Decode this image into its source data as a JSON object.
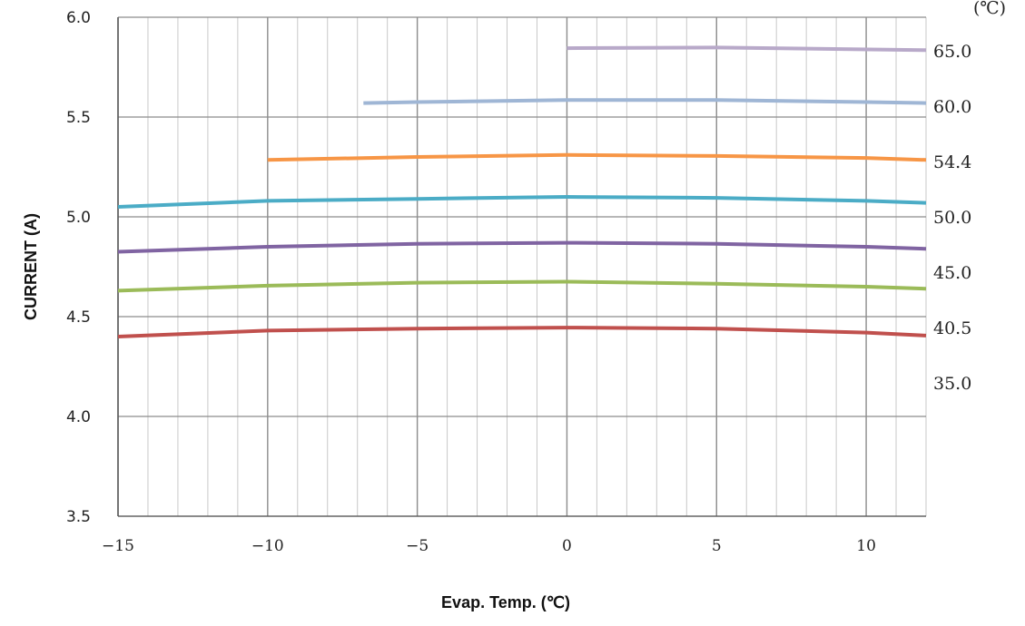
{
  "chart_data": {
    "type": "line",
    "xlabel": "Evap. Temp. (℃)",
    "ylabel": "CURRENT (A)",
    "xlim": [
      -15,
      12
    ],
    "ylim": [
      3.5,
      6.0
    ],
    "x_ticks": [
      -15,
      -10,
      -5,
      0,
      5,
      10
    ],
    "x_tick_labels": [
      "−15",
      "−10",
      "−5",
      "0",
      "5",
      "10"
    ],
    "y_ticks": [
      3.5,
      4.0,
      4.5,
      5.0,
      5.5,
      6.0
    ],
    "y_tick_labels": [
      "3.5",
      "4.0",
      "4.5",
      "5.0",
      "5.5",
      "6.0"
    ],
    "grid": true,
    "legend_unit": "(℃)",
    "legend_labels": [
      "65.0",
      "60.0",
      "54.4",
      "50.0",
      "45.0",
      "40.5",
      "35.0"
    ],
    "series": [
      {
        "color": "#b8a9c9",
        "x": [
          0,
          5,
          12
        ],
        "y": [
          5.845,
          5.848,
          5.835
        ]
      },
      {
        "color": "#9fb6d5",
        "x": [
          -6.8,
          -5,
          0,
          5,
          10,
          12
        ],
        "y": [
          5.57,
          5.575,
          5.585,
          5.585,
          5.575,
          5.57
        ]
      },
      {
        "color": "#f79646",
        "x": [
          -10,
          -5,
          0,
          5,
          10,
          12
        ],
        "y": [
          5.285,
          5.3,
          5.31,
          5.305,
          5.295,
          5.285
        ]
      },
      {
        "color": "#4bacc6",
        "x": [
          -15,
          -10,
          -5,
          0,
          5,
          10,
          12
        ],
        "y": [
          5.05,
          5.08,
          5.09,
          5.1,
          5.095,
          5.08,
          5.07
        ]
      },
      {
        "color": "#8064a2",
        "x": [
          -15,
          -10,
          -5,
          0,
          5,
          10,
          12
        ],
        "y": [
          4.825,
          4.85,
          4.865,
          4.87,
          4.865,
          4.85,
          4.84
        ]
      },
      {
        "color": "#9bbb59",
        "x": [
          -15,
          -10,
          -5,
          0,
          5,
          10,
          12
        ],
        "y": [
          4.63,
          4.655,
          4.67,
          4.675,
          4.665,
          4.65,
          4.64
        ]
      },
      {
        "color": "#c0504d",
        "x": [
          -15,
          -10,
          -5,
          0,
          5,
          10,
          12
        ],
        "y": [
          4.4,
          4.43,
          4.44,
          4.445,
          4.44,
          4.42,
          4.405
        ]
      }
    ]
  }
}
